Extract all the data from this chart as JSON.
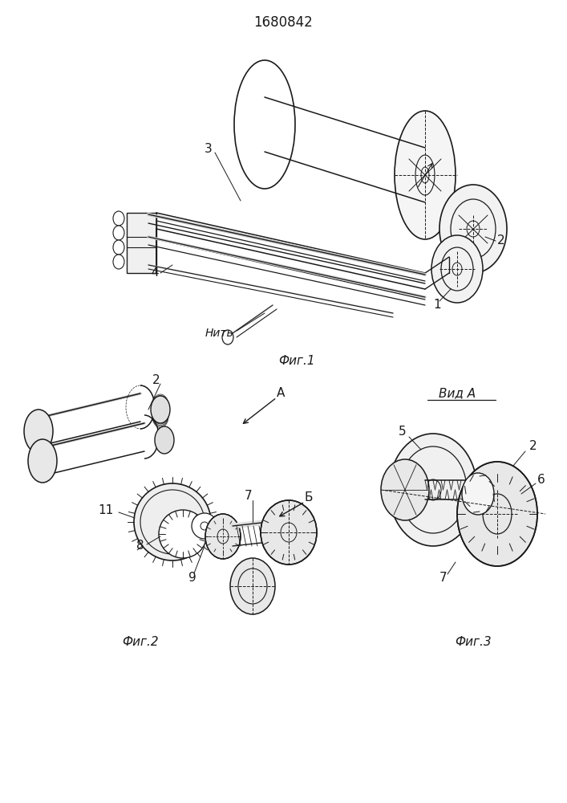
{
  "title": "1680842",
  "bg_color": "#ffffff",
  "line_color": "#1a1a1a",
  "fig1_caption": "Фиг.1",
  "fig2_caption": "Фиг.2",
  "fig3_caption": "Фиг.3",
  "vid_a": "Вид А",
  "nit": "Нить"
}
